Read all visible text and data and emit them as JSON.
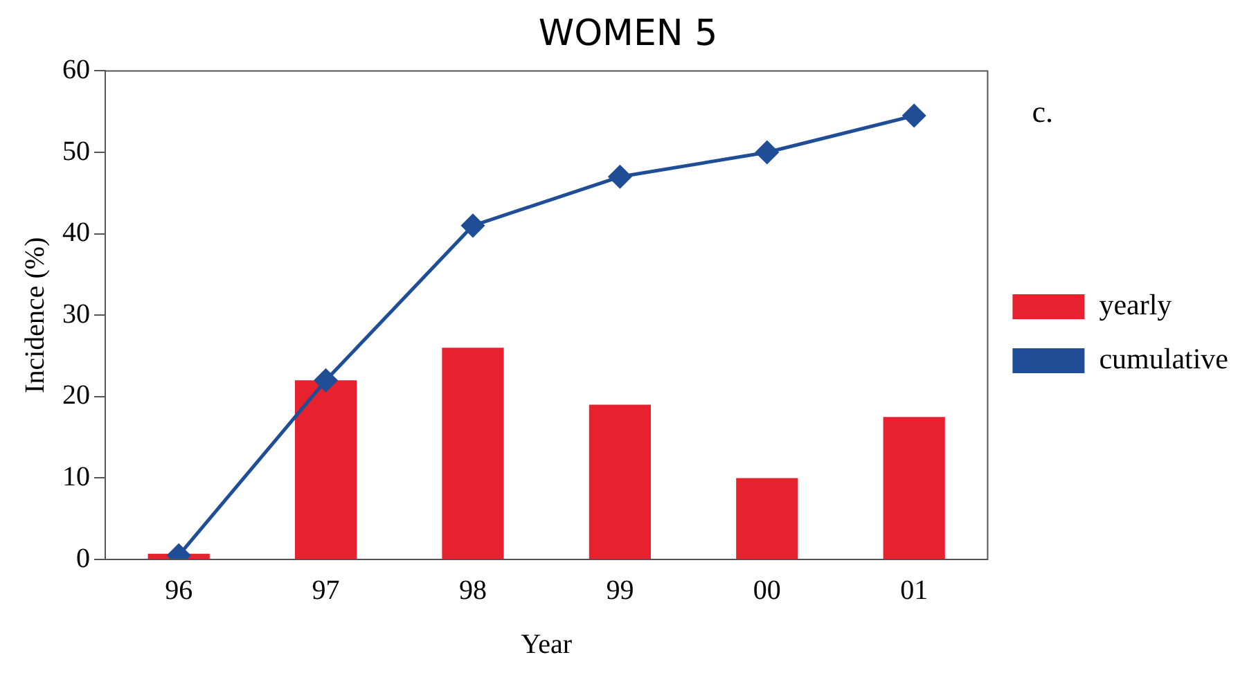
{
  "chart_data": {
    "type": "bar",
    "title": "WOMEN 5",
    "xlabel": "Year",
    "ylabel": "Incidence (%)",
    "annotations": [
      "c."
    ],
    "categories": [
      "96",
      "97",
      "98",
      "99",
      "00",
      "01"
    ],
    "series": [
      {
        "name": "yearly",
        "color": "#e8212f",
        "values": [
          0.7,
          22,
          26,
          19,
          10,
          17.5
        ]
      },
      {
        "name": "cumulative",
        "type": "line",
        "color": "#1f4e96",
        "values": [
          0.5,
          22,
          41,
          47,
          50,
          54.5
        ]
      }
    ],
    "ylim": [
      0,
      60
    ],
    "yticks": [
      0,
      10,
      20,
      30,
      40,
      50,
      60
    ],
    "grid": false,
    "legend": "right",
    "marker": "diamond",
    "line_style": "solid"
  }
}
